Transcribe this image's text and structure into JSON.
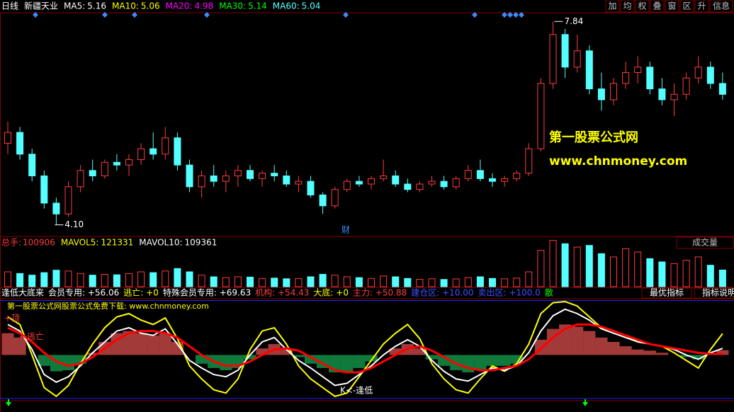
{
  "header": {
    "period": "日线",
    "stock": "新疆天业",
    "ma": [
      {
        "name": "MA5:",
        "value": 5.16,
        "color": "#ffffff"
      },
      {
        "name": "MA10:",
        "value": 5.06,
        "color": "#ffff00"
      },
      {
        "name": "MA20:",
        "value": 4.98,
        "color": "#ff00ff"
      },
      {
        "name": "MA30:",
        "value": 5.14,
        "color": "#00ff00"
      },
      {
        "name": "MA60:",
        "value": 5.04,
        "color": "#54ffff"
      }
    ],
    "buttons": [
      "加",
      "均",
      "权",
      "叠",
      "窗",
      "区",
      "升",
      "信息"
    ]
  },
  "price_panel": {
    "type": "candlestick",
    "ylim": [
      3.9,
      8.0
    ],
    "up_color": "#ff3c3c",
    "down_color": "#54ffff",
    "candles": [
      [
        5.6,
        6.0,
        5.4,
        5.8
      ],
      [
        5.8,
        5.9,
        5.3,
        5.4
      ],
      [
        5.4,
        5.5,
        4.9,
        5.0
      ],
      [
        5.0,
        5.1,
        4.4,
        4.5
      ],
      [
        4.5,
        4.6,
        4.1,
        4.3
      ],
      [
        4.3,
        4.9,
        4.25,
        4.8
      ],
      [
        4.8,
        5.2,
        4.7,
        5.1
      ],
      [
        5.1,
        5.3,
        4.9,
        5.0
      ],
      [
        5.0,
        5.3,
        4.95,
        5.25
      ],
      [
        5.25,
        5.4,
        5.1,
        5.2
      ],
      [
        5.2,
        5.4,
        5.0,
        5.3
      ],
      [
        5.3,
        5.6,
        5.2,
        5.5
      ],
      [
        5.5,
        5.8,
        5.3,
        5.4
      ],
      [
        5.4,
        5.9,
        5.3,
        5.7
      ],
      [
        5.7,
        5.8,
        5.1,
        5.2
      ],
      [
        5.2,
        5.3,
        4.7,
        4.8
      ],
      [
        4.8,
        5.1,
        4.6,
        5.0
      ],
      [
        5.0,
        5.2,
        4.8,
        4.9
      ],
      [
        4.9,
        5.1,
        4.7,
        5.0
      ],
      [
        5.0,
        5.2,
        4.8,
        5.1
      ],
      [
        5.1,
        5.2,
        4.9,
        4.95
      ],
      [
        4.95,
        5.1,
        4.8,
        5.05
      ],
      [
        5.05,
        5.2,
        4.9,
        5.0
      ],
      [
        5.0,
        5.1,
        4.8,
        4.85
      ],
      [
        4.85,
        5.0,
        4.7,
        4.9
      ],
      [
        4.9,
        5.0,
        4.6,
        4.65
      ],
      [
        4.65,
        4.7,
        4.3,
        4.45
      ],
      [
        4.45,
        4.8,
        4.4,
        4.75
      ],
      [
        4.75,
        4.95,
        4.7,
        4.9
      ],
      [
        4.9,
        5.0,
        4.8,
        4.85
      ],
      [
        4.85,
        5.0,
        4.75,
        4.95
      ],
      [
        4.95,
        5.3,
        4.9,
        5.0
      ],
      [
        5.0,
        5.1,
        4.8,
        4.85
      ],
      [
        4.85,
        4.95,
        4.7,
        4.75
      ],
      [
        4.75,
        4.9,
        4.7,
        4.85
      ],
      [
        4.85,
        5.0,
        4.8,
        4.9
      ],
      [
        4.9,
        5.0,
        4.75,
        4.8
      ],
      [
        4.8,
        5.0,
        4.75,
        4.95
      ],
      [
        4.95,
        5.2,
        4.9,
        5.1
      ],
      [
        5.1,
        5.3,
        4.9,
        4.95
      ],
      [
        4.95,
        5.05,
        4.8,
        4.9
      ],
      [
        4.9,
        5.0,
        4.8,
        4.95
      ],
      [
        4.95,
        5.1,
        4.9,
        5.05
      ],
      [
        5.05,
        5.6,
        5.0,
        5.5
      ],
      [
        5.5,
        6.8,
        5.45,
        6.7
      ],
      [
        6.7,
        7.84,
        6.6,
        7.6
      ],
      [
        7.6,
        7.7,
        6.8,
        7.0
      ],
      [
        7.0,
        7.6,
        6.9,
        7.3
      ],
      [
        7.3,
        7.4,
        6.5,
        6.6
      ],
      [
        6.6,
        6.9,
        6.2,
        6.4
      ],
      [
        6.4,
        6.8,
        6.3,
        6.7
      ],
      [
        6.7,
        7.1,
        6.6,
        6.9
      ],
      [
        6.9,
        7.2,
        6.7,
        7.0
      ],
      [
        7.0,
        7.1,
        6.5,
        6.6
      ],
      [
        6.6,
        6.8,
        6.3,
        6.4
      ],
      [
        6.4,
        6.7,
        6.1,
        6.5
      ],
      [
        6.5,
        6.9,
        6.4,
        6.8
      ],
      [
        6.8,
        7.2,
        6.7,
        7.0
      ],
      [
        7.0,
        7.1,
        6.6,
        6.7
      ],
      [
        6.7,
        6.9,
        6.4,
        6.5
      ]
    ],
    "low_label": {
      "value": 4.1,
      "label": "4.10"
    },
    "high_label": 7.84,
    "marker": "财",
    "watermark": [
      "第一股票公式网",
      "www.chnmoney.com"
    ]
  },
  "volume_panel": {
    "title": "总手:",
    "total": 100906,
    "mavol5_name": "MAVOL5:",
    "mavol5": 121331,
    "mavol10_name": "MAVOL10:",
    "mavol10": 109361,
    "button": "成交量",
    "ylim": [
      0,
      300000
    ],
    "values": [
      90000,
      80000,
      70000,
      85000,
      100000,
      95000,
      80000,
      70000,
      75000,
      72000,
      80000,
      90000,
      85000,
      95000,
      110000,
      90000,
      70000,
      60000,
      55000,
      60000,
      58000,
      50000,
      52000,
      48000,
      50000,
      60000,
      75000,
      70000,
      60000,
      55000,
      50000,
      65000,
      60000,
      50000,
      45000,
      48000,
      44000,
      47000,
      55000,
      60000,
      50000,
      48000,
      52000,
      90000,
      220000,
      280000,
      260000,
      240000,
      250000,
      200000,
      180000,
      230000,
      210000,
      170000,
      150000,
      140000,
      160000,
      180000,
      130000,
      100906
    ]
  },
  "indicator_panel": {
    "header": [
      "逢低大底来",
      "会员专用: +56.06",
      "逃亡: +0",
      "特殊会员专用: +69.63",
      "机构: +54.43",
      "大底: +0",
      "主力: +50.88",
      "建仓区: +10.00",
      "卖出区: +100.0",
      "散"
    ],
    "buttons": [
      "最优指标",
      "指标说明"
    ],
    "banner": "第一股票公式网股票公式免费下载: www.chnmoney.com",
    "annotations": [
      "+顶",
      "←逃亡",
      "K<-逢低"
    ],
    "ylim": [
      8,
      101
    ],
    "base": 50,
    "levels": [
      10,
      100
    ],
    "fill": [
      70,
      66,
      50,
      40,
      35,
      36,
      42,
      52,
      62,
      70,
      72,
      70,
      68,
      70,
      62,
      50,
      42,
      38,
      36,
      38,
      46,
      56,
      60,
      56,
      48,
      42,
      38,
      34,
      34,
      38,
      44,
      50,
      56,
      60,
      56,
      46,
      40,
      36,
      34,
      36,
      40,
      40,
      42,
      50,
      64,
      74,
      78,
      76,
      72,
      66,
      62,
      58,
      55,
      54,
      52,
      50,
      48,
      46,
      50,
      54.43
    ],
    "series": [
      {
        "color": "#ffff00",
        "values": [
          85,
          78,
          50,
          20,
          12,
          22,
          42,
          60,
          75,
          85,
          88,
          82,
          78,
          84,
          65,
          40,
          28,
          18,
          15,
          28,
          55,
          72,
          75,
          60,
          40,
          28,
          20,
          12,
          15,
          30,
          45,
          60,
          70,
          78,
          65,
          42,
          28,
          18,
          15,
          28,
          40,
          35,
          42,
          60,
          88,
          98,
          99,
          95,
          85,
          75,
          72,
          68,
          62,
          60,
          58,
          52,
          45,
          38,
          55,
          69.63
        ]
      },
      {
        "color": "#ffffff",
        "values": [
          78,
          72,
          55,
          32,
          25,
          30,
          40,
          52,
          62,
          72,
          75,
          70,
          68,
          74,
          60,
          45,
          38,
          32,
          30,
          36,
          50,
          62,
          66,
          55,
          45,
          38,
          30,
          22,
          24,
          32,
          40,
          50,
          58,
          64,
          58,
          45,
          35,
          28,
          26,
          32,
          38,
          36,
          40,
          52,
          72,
          86,
          92,
          88,
          82,
          74,
          70,
          66,
          62,
          60,
          58,
          55,
          50,
          46,
          52,
          56.06
        ]
      },
      {
        "color": "#ff0000",
        "values": [
          75,
          70,
          62,
          52,
          44,
          40,
          42,
          48,
          56,
          64,
          70,
          72,
          72,
          70,
          66,
          58,
          50,
          44,
          40,
          40,
          44,
          50,
          55,
          56,
          54,
          48,
          42,
          36,
          34,
          34,
          38,
          44,
          50,
          56,
          58,
          54,
          48,
          42,
          38,
          36,
          36,
          38,
          40,
          46,
          56,
          66,
          74,
          78,
          78,
          76,
          72,
          68,
          64,
          60,
          58,
          56,
          54,
          52,
          51,
          50.88
        ]
      }
    ]
  }
}
